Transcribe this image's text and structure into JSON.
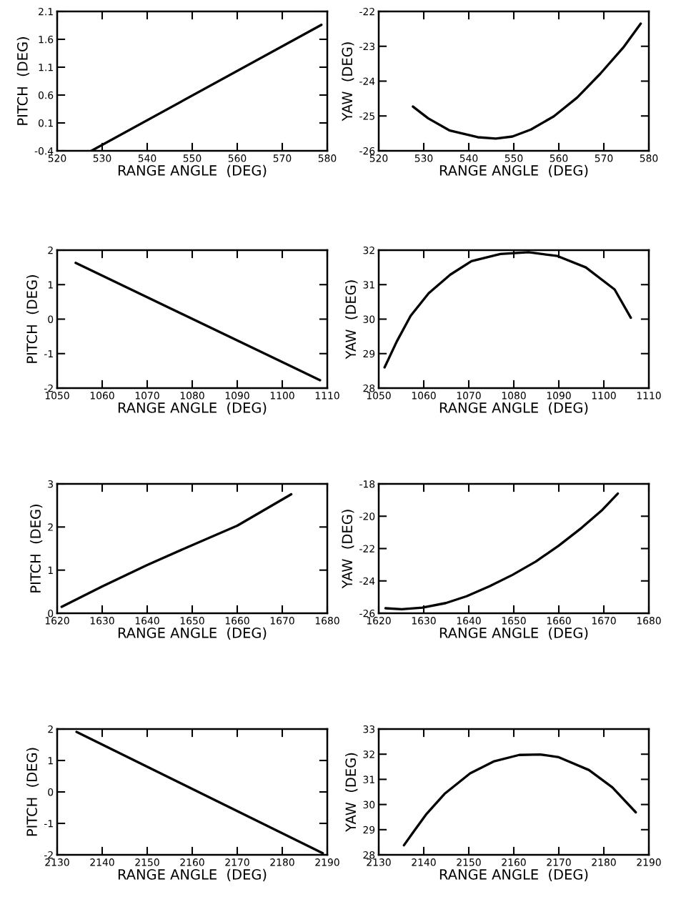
{
  "chart_data": [
    {
      "type": "line",
      "xlabel": "RANGE ANGLE  (DEG)",
      "ylabel": "PITCH  (DEG)",
      "color": "#000000",
      "xlim": [
        520,
        580
      ],
      "xticks": [
        520,
        530,
        540,
        550,
        560,
        570,
        580
      ],
      "ylim": [
        -0.4,
        2.1
      ],
      "yticks": [
        -0.4,
        0.1,
        0.6,
        1.1,
        1.6,
        2.1
      ],
      "x": [
        527.6,
        578.7
      ],
      "values": [
        -0.4,
        1.86
      ]
    },
    {
      "type": "line",
      "xlabel": "RANGE ANGLE  (DEG)",
      "ylabel": "YAW  (DEG)",
      "color": "#000000",
      "xlim": [
        520,
        580
      ],
      "xticks": [
        520,
        530,
        540,
        550,
        560,
        570,
        580
      ],
      "ylim": [
        -26,
        -22
      ],
      "yticks": [
        -26,
        -25,
        -24,
        -23,
        -22
      ],
      "x": [
        527.6,
        531,
        535.8,
        542,
        546,
        549.7,
        553.8,
        558.9,
        564.1,
        569.2,
        574.3,
        578.2
      ],
      "values": [
        -24.73,
        -25.07,
        -25.42,
        -25.61,
        -25.65,
        -25.59,
        -25.39,
        -25.01,
        -24.47,
        -23.79,
        -23.04,
        -22.35
      ]
    },
    {
      "type": "line",
      "xlabel": "RANGE ANGLE  (DEG)",
      "ylabel": "PITCH  (DEG)",
      "color": "#000000",
      "xlim": [
        1050,
        1110
      ],
      "xticks": [
        1050,
        1060,
        1070,
        1080,
        1090,
        1100,
        1110
      ],
      "ylim": [
        -2,
        2
      ],
      "yticks": [
        -2,
        -1,
        0,
        1,
        2
      ],
      "x": [
        1054.1,
        1108.4
      ],
      "values": [
        1.63,
        -1.77
      ]
    },
    {
      "type": "line",
      "xlabel": "RANGE ANGLE  (DEG)",
      "ylabel": "YAW  (DEG)",
      "color": "#000000",
      "xlim": [
        1050,
        1110
      ],
      "xticks": [
        1050,
        1060,
        1070,
        1080,
        1090,
        1100,
        1110
      ],
      "ylim": [
        28,
        32
      ],
      "yticks": [
        28,
        29,
        30,
        31,
        32
      ],
      "x": [
        1051.3,
        1054,
        1057.1,
        1061.1,
        1065.9,
        1070.6,
        1077,
        1083.3,
        1089.7,
        1096,
        1102.4,
        1106
      ],
      "values": [
        28.6,
        29.35,
        30.1,
        30.75,
        31.29,
        31.68,
        31.89,
        31.94,
        31.83,
        31.5,
        30.86,
        30.04
      ]
    },
    {
      "type": "line",
      "xlabel": "RANGE ANGLE  (DEG)",
      "ylabel": "PITCH  (DEG)",
      "color": "#000000",
      "xlim": [
        1620,
        1680
      ],
      "xticks": [
        1620,
        1630,
        1640,
        1650,
        1660,
        1670,
        1680
      ],
      "ylim": [
        0,
        3
      ],
      "yticks": [
        0,
        1,
        2,
        3
      ],
      "x": [
        1621,
        1630,
        1640,
        1650,
        1660,
        1672
      ],
      "values": [
        0.15,
        0.62,
        1.12,
        1.58,
        2.03,
        2.76
      ]
    },
    {
      "type": "line",
      "xlabel": "RANGE ANGLE  (DEG)",
      "ylabel": "YAW  (DEG)",
      "color": "#000000",
      "xlim": [
        1620,
        1680
      ],
      "xticks": [
        1620,
        1630,
        1640,
        1650,
        1660,
        1670,
        1680
      ],
      "ylim": [
        -26,
        -18
      ],
      "yticks": [
        -26,
        -24,
        -22,
        -20,
        -18
      ],
      "x": [
        1621.5,
        1625.1,
        1629.7,
        1634.9,
        1639.5,
        1644.6,
        1649.7,
        1654.9,
        1660,
        1665.1,
        1669.7,
        1673.1
      ],
      "values": [
        -25.69,
        -25.75,
        -25.65,
        -25.37,
        -24.95,
        -24.33,
        -23.63,
        -22.8,
        -21.82,
        -20.71,
        -19.6,
        -18.6
      ]
    },
    {
      "type": "line",
      "xlabel": "RANGE ANGLE  (DEG)",
      "ylabel": "PITCH  (DEG)",
      "color": "#000000",
      "xlim": [
        2130,
        2190
      ],
      "xticks": [
        2130,
        2140,
        2150,
        2160,
        2170,
        2180,
        2190
      ],
      "ylim": [
        -2,
        2
      ],
      "yticks": [
        -2,
        -1,
        0,
        1,
        2
      ],
      "x": [
        2134.3,
        2189
      ],
      "values": [
        1.91,
        -1.95
      ]
    },
    {
      "type": "line",
      "xlabel": "RANGE ANGLE  (DEG)",
      "ylabel": "YAW  (DEG)",
      "color": "#000000",
      "xlim": [
        2130,
        2190
      ],
      "xticks": [
        2130,
        2140,
        2150,
        2160,
        2170,
        2180,
        2190
      ],
      "ylim": [
        28,
        33
      ],
      "yticks": [
        28,
        29,
        30,
        31,
        32,
        33
      ],
      "x": [
        2135.6,
        2137.9,
        2140.5,
        2144.6,
        2150.3,
        2155.5,
        2161.2,
        2165.9,
        2170,
        2176.7,
        2181.9,
        2187.1
      ],
      "values": [
        28.38,
        28.96,
        29.6,
        30.42,
        31.24,
        31.71,
        31.97,
        31.99,
        31.88,
        31.37,
        30.68,
        29.69
      ]
    }
  ]
}
